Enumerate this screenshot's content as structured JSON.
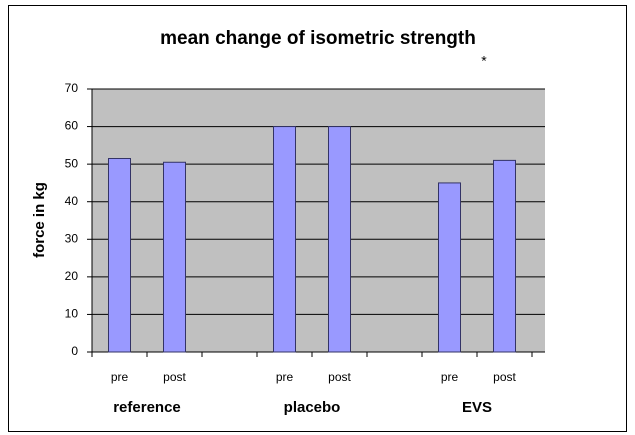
{
  "chart_data": {
    "type": "bar",
    "title": "mean change of isometric strength",
    "y_label": "force in kg",
    "categories": [
      "pre",
      "post",
      null,
      "pre",
      "post",
      null,
      "pre",
      "post"
    ],
    "values": [
      51.5,
      50.5,
      null,
      60,
      60,
      null,
      45,
      51
    ],
    "groups": [
      "reference",
      "placebo",
      "EVS"
    ],
    "annotation": "*",
    "color": "#9999ff",
    "ylim": [
      0,
      70
    ],
    "yticks": [
      0,
      10,
      20,
      30,
      40,
      50,
      60,
      70
    ],
    "grid": true
  }
}
